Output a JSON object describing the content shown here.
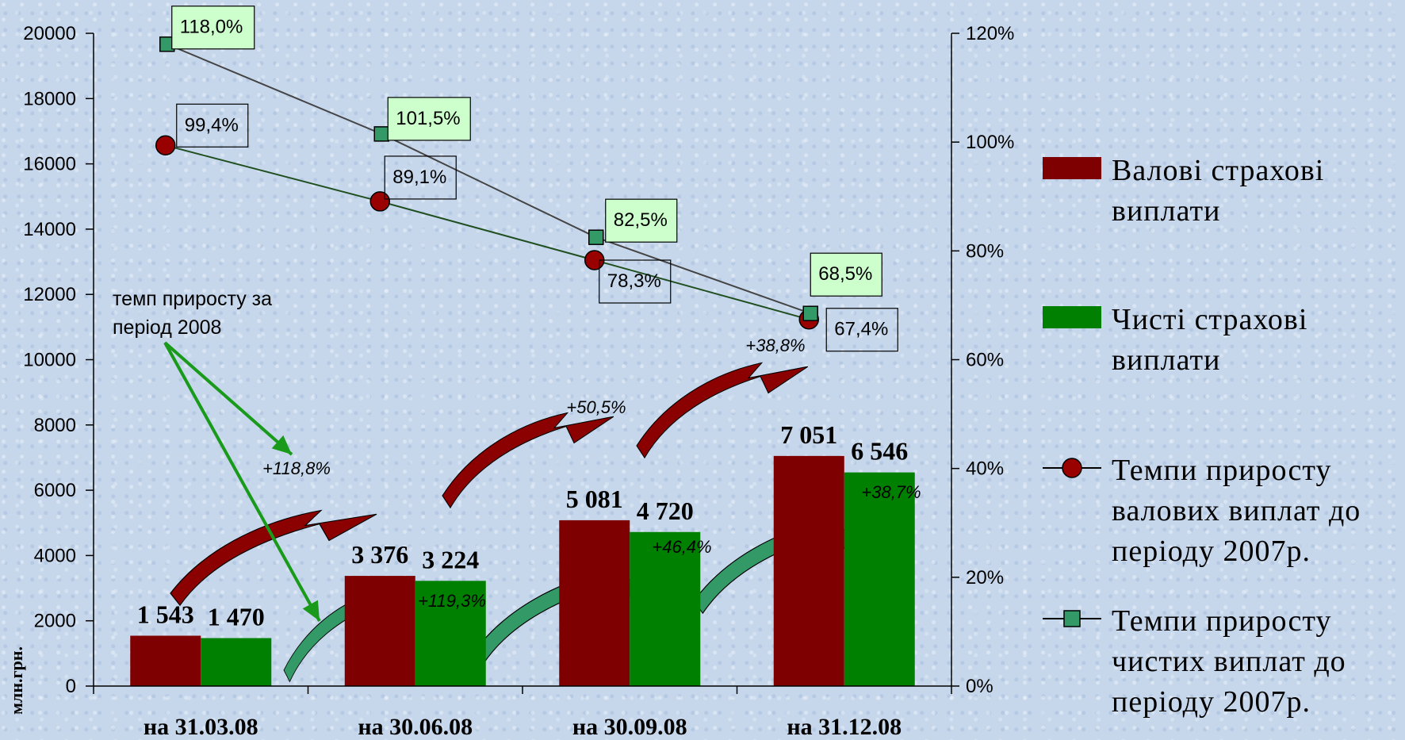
{
  "chart_data": {
    "type": "bar",
    "categories": [
      "на 31.03.08",
      "на 30.06.08",
      "на 30.09.08",
      "на 31.12.08"
    ],
    "series": [
      {
        "name": "Валові страхові виплати",
        "type": "bar",
        "color": "#7f0000",
        "values": [
          1543,
          3376,
          5081,
          7051
        ],
        "labels": [
          "1 543",
          "3 376",
          "5 081",
          "7 051"
        ]
      },
      {
        "name": "Чисті страхові виплати",
        "type": "bar",
        "color": "#008000",
        "values": [
          1470,
          3224,
          4720,
          6546
        ],
        "labels": [
          "1 470",
          "3 224",
          "4 720",
          "6 546"
        ]
      },
      {
        "name": "Темпи приросту валових виплат до періоду 2007р.",
        "type": "line",
        "axis": "right",
        "marker": "circle",
        "color": "#7f0000",
        "values": [
          99.4,
          89.1,
          78.3,
          67.4
        ],
        "labels": [
          "99,4%",
          "89,1%",
          "78,3%",
          "67,4%"
        ]
      },
      {
        "name": "Темпи приросту чистих виплат до періоду 2007р.",
        "type": "line",
        "axis": "right",
        "marker": "square",
        "color": "#339966",
        "values": [
          118.0,
          101.5,
          82.5,
          68.5
        ],
        "labels": [
          "118,0%",
          "101,5%",
          "82,5%",
          "68,5%"
        ]
      }
    ],
    "y_left": {
      "label": "млн.грн.",
      "ylim": [
        0,
        20000
      ],
      "ticks": [
        "0",
        "2000",
        "4000",
        "6000",
        "8000",
        "10000",
        "12000",
        "14000",
        "16000",
        "18000",
        "20000"
      ]
    },
    "y_right": {
      "ylim": [
        0,
        120
      ],
      "ticks": [
        "0%",
        "20%",
        "40%",
        "60%",
        "80%",
        "100%",
        "120%"
      ]
    },
    "annotation": "темп приросту за період 2008",
    "growth_gross": [
      "+118,8%",
      "+50,5%",
      "+38,8%"
    ],
    "growth_net": [
      "+119,3%",
      "+46,4%",
      "+38,7%"
    ],
    "legend_position": "right",
    "grid": false
  }
}
